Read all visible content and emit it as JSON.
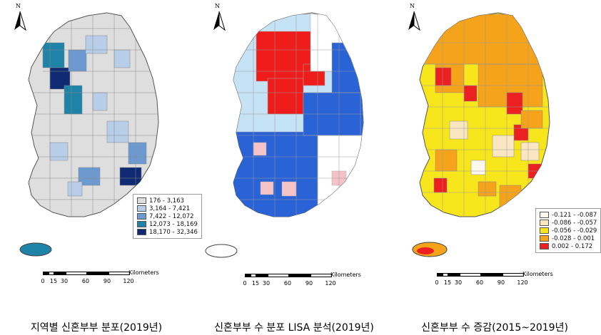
{
  "north_letter": "N",
  "maps": [
    {
      "caption": "지역별 신혼부부 분포(2019년)",
      "legend": [
        {
          "label": "176 - 3,163",
          "color": "#dedede"
        },
        {
          "label": "3,164 - 7,421",
          "color": "#b7cde8"
        },
        {
          "label": "7,422 - 12,072",
          "color": "#6c99cf"
        },
        {
          "label": "12,073 - 18,169",
          "color": "#1f83a8"
        },
        {
          "label": "18,170 - 32,346",
          "color": "#0f2a72"
        }
      ]
    },
    {
      "caption": "신혼부부 수 분포 LISA 분석(2019년)",
      "legend": []
    },
    {
      "caption": "신혼부부 수 증감(2015~2019년)",
      "legend": [
        {
          "label": "-0.121 - -0.087",
          "color": "#fdf8ee"
        },
        {
          "label": "-0.086 - -0.057",
          "color": "#fae7c2"
        },
        {
          "label": "-0.056 - -0.029",
          "color": "#f8e61c"
        },
        {
          "label": "-0.028 - 0.001",
          "color": "#f5a31a"
        },
        {
          "label": "0.002 - 0.172",
          "color": "#ec2020"
        }
      ]
    }
  ],
  "scale_bar": {
    "unit": "Kilometers",
    "ticks": [
      "0",
      "15",
      "30",
      "60",
      "90",
      "120"
    ]
  }
}
